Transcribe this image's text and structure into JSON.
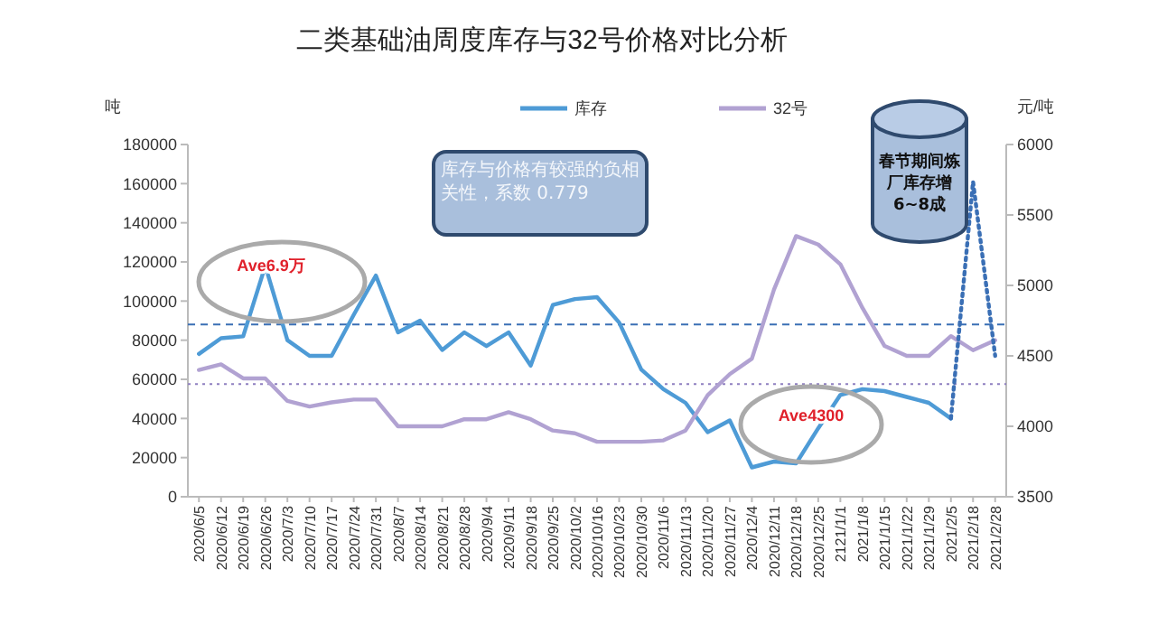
{
  "chart_data": {
    "type": "line",
    "title": "二类基础油周度库存与32号价格对比分析",
    "ylabel": "吨",
    "y2label": "元/吨",
    "categories": [
      "2020/6/5",
      "2020/6/12",
      "2020/6/19",
      "2020/6/26",
      "2020/7/3",
      "2020/7/10",
      "2020/7/17",
      "2020/7/24",
      "2020/7/31",
      "2020/8/7",
      "2020/8/14",
      "2020/8/21",
      "2020/8/28",
      "2020/9/4",
      "2020/9/11",
      "2020/9/18",
      "2020/9/25",
      "2020/10/2",
      "2020/10/16",
      "2020/10/23",
      "2020/10/30",
      "2020/11/6",
      "2020/11/13",
      "2020/11/20",
      "2020/11/27",
      "2020/12/4",
      "2020/12/11",
      "2020/12/18",
      "2020/12/25",
      "2121/1/1",
      "2021/1/8",
      "2021/1/15",
      "2021/1/22",
      "2021/1/29",
      "2021/2/5",
      "2021/2/18",
      "2021/2/28"
    ],
    "series": [
      {
        "name": "库存",
        "color": "#4e9bd6",
        "values": [
          73000,
          81000,
          82000,
          118000,
          80000,
          72000,
          72000,
          93000,
          113000,
          84000,
          90000,
          75000,
          84000,
          77000,
          84000,
          67000,
          98000,
          101000,
          102000,
          89000,
          65000,
          55000,
          48000,
          33000,
          39000,
          15000,
          18000,
          17000,
          35000,
          52000,
          55000,
          54000,
          51000,
          48000,
          40000,
          null,
          null
        ]
      },
      {
        "name": "32号",
        "color": "#b1a2d2",
        "axis": "y2",
        "values": [
          4400,
          4440,
          4340,
          4340,
          4180,
          4140,
          4170,
          4190,
          4190,
          4000,
          4000,
          4000,
          4050,
          4050,
          4100,
          4050,
          3970,
          3950,
          3890,
          3890,
          3890,
          3900,
          3970,
          4220,
          4370,
          4480,
          4970,
          5350,
          5290,
          5150,
          4840,
          4570,
          4500,
          4500,
          4640,
          4540,
          4610
        ]
      },
      {
        "color": "#3a6fb5",
        "line_style": "dotted",
        "values": [
          null,
          null,
          null,
          null,
          null,
          null,
          null,
          null,
          null,
          null,
          null,
          null,
          null,
          null,
          null,
          null,
          null,
          null,
          null,
          null,
          null,
          null,
          null,
          null,
          null,
          null,
          null,
          null,
          null,
          null,
          null,
          null,
          null,
          null,
          40000,
          161000,
          72000
        ]
      }
    ],
    "ylim": [
      0,
      180000
    ],
    "yticks": [
      0,
      20000,
      40000,
      60000,
      80000,
      100000,
      120000,
      140000,
      160000,
      180000
    ],
    "y2lim": [
      3500,
      6000
    ],
    "y2ticks": [
      3500,
      4000,
      4500,
      5000,
      5500,
      6000
    ],
    "ref_lines": [
      {
        "axis": "y",
        "value": 88000,
        "color": "#3a6fb5",
        "line_style": "dashed"
      },
      {
        "axis": "y2",
        "value": 4300,
        "color": "#8e7fc0",
        "line_style": "dotted"
      }
    ],
    "annotations": [
      "Ave6.9万",
      "Ave4300",
      "库存与价格有较强的负相关性，系数 0.779",
      "春节期间炼厂库存增6~8成"
    ],
    "legend": "top",
    "grid": false
  }
}
